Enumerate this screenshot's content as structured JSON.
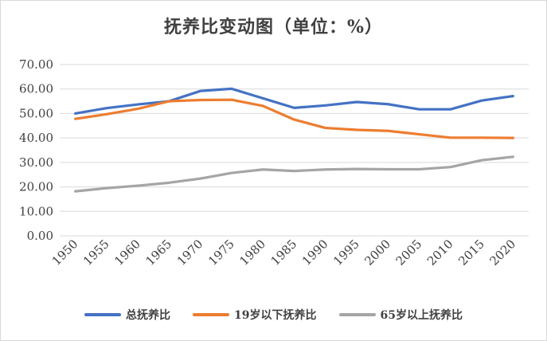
{
  "chart_data": {
    "type": "line",
    "title": "抚养比变动图（单位：%）",
    "xlabel": "",
    "ylabel": "",
    "categories": [
      "1950",
      "1955",
      "1960",
      "1965",
      "1970",
      "1975",
      "1980",
      "1985",
      "1990",
      "1995",
      "2000",
      "2005",
      "2010",
      "2015",
      "2020"
    ],
    "ylim": [
      0,
      70
    ],
    "yticks": [
      "0.00",
      "10.00",
      "20.00",
      "30.00",
      "40.00",
      "50.00",
      "60.00",
      "70.00"
    ],
    "grid": true,
    "legend_position": "bottom",
    "series": [
      {
        "name": "总抚养比",
        "color": "#4472c4",
        "values": [
          50.0,
          52.2,
          53.7,
          55.0,
          59.2,
          60.1,
          56.2,
          52.3,
          53.3,
          54.7,
          53.8,
          51.7,
          51.7,
          55.3,
          57.1
        ]
      },
      {
        "name": "19岁以下抚养比",
        "color": "#ed7d31",
        "values": [
          47.8,
          49.7,
          51.9,
          55.0,
          55.5,
          55.6,
          53.1,
          47.5,
          44.1,
          43.3,
          42.9,
          41.5,
          40.1,
          40.1,
          40.0
        ]
      },
      {
        "name": "65岁以上抚养比",
        "color": "#a5a5a5",
        "values": [
          18.2,
          19.5,
          20.5,
          21.7,
          23.4,
          25.7,
          27.1,
          26.5,
          27.1,
          27.3,
          27.2,
          27.2,
          28.1,
          30.9,
          32.3
        ]
      }
    ]
  }
}
